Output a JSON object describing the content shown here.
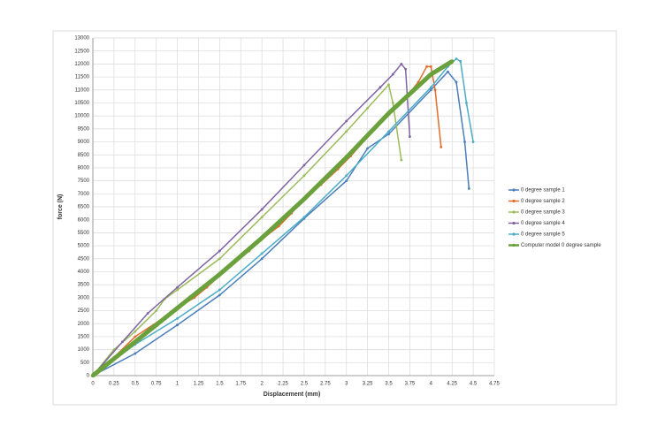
{
  "chart_data": {
    "type": "line",
    "x_label": "Displacement (mm)",
    "y_label": "force (N)",
    "xlim": [
      0,
      4.75
    ],
    "xticks": [
      0,
      0.25,
      0.5,
      0.75,
      1,
      1.25,
      1.5,
      1.75,
      2,
      2.25,
      2.5,
      2.75,
      3,
      3.25,
      3.5,
      3.75,
      4,
      4.25,
      4.5,
      4.75
    ],
    "ylim": [
      0,
      13000
    ],
    "yticks": [
      0,
      500,
      1000,
      1500,
      2000,
      2500,
      3000,
      3500,
      4000,
      4500,
      5000,
      5500,
      6000,
      6500,
      7000,
      7500,
      8000,
      8500,
      9000,
      9500,
      10000,
      10500,
      11000,
      11500,
      12000,
      12500,
      13000
    ],
    "grid": true,
    "legend": "right",
    "series": [
      {
        "name": "0 degree sample 1",
        "color": "#4a7ebb",
        "width": 1.5,
        "x": [
          0,
          0.5,
          1,
          1.5,
          2,
          2.5,
          3,
          3.25,
          3.5,
          4,
          4.2,
          4.3,
          4.4,
          4.45
        ],
        "values": [
          0,
          850,
          1950,
          3100,
          4500,
          6050,
          7500,
          8750,
          9300,
          11000,
          11700,
          11300,
          9000,
          7200
        ]
      },
      {
        "name": "0 degree sample 2",
        "color": "#e46c2a",
        "width": 1.5,
        "x": [
          0,
          0.25,
          0.5,
          0.85,
          1,
          1.2,
          1.35,
          1.5,
          1.65,
          1.85,
          2,
          2.2,
          2.35,
          2.5,
          2.7,
          2.9,
          3.05,
          3.5,
          3.7,
          3.85,
          3.95,
          4.0,
          4.05,
          4.12
        ],
        "values": [
          0,
          700,
          1500,
          2250,
          2600,
          3000,
          3400,
          3850,
          4300,
          4800,
          5250,
          5750,
          6250,
          6800,
          7350,
          7950,
          8450,
          10100,
          10700,
          11300,
          11900,
          11900,
          11000,
          8800
        ]
      },
      {
        "name": "0 degree sample 3",
        "color": "#9bbb59",
        "width": 1.5,
        "x": [
          0,
          0.25,
          0.5,
          0.75,
          0.85,
          1,
          1.5,
          2,
          2.5,
          3,
          3.25,
          3.5,
          3.55,
          3.65
        ],
        "values": [
          0,
          1000,
          1700,
          2500,
          2950,
          3300,
          4500,
          6100,
          7700,
          9400,
          10300,
          11200,
          10500,
          8300
        ]
      },
      {
        "name": "0 degree sample 4",
        "color": "#8064a2",
        "width": 1.5,
        "x": [
          0,
          0.35,
          0.65,
          1,
          1.5,
          2,
          2.5,
          3,
          3.4,
          3.55,
          3.65,
          3.7,
          3.75
        ],
        "values": [
          0,
          1300,
          2400,
          3400,
          4800,
          6400,
          8100,
          9800,
          11100,
          11600,
          12000,
          11800,
          9200
        ]
      },
      {
        "name": "0 degree sample 5",
        "color": "#4bacc6",
        "width": 1.5,
        "x": [
          0,
          0.5,
          1,
          1.5,
          2,
          2.5,
          3,
          3.5,
          4,
          4.2,
          4.3,
          4.35,
          4.42,
          4.5
        ],
        "values": [
          0,
          1200,
          2200,
          3300,
          4700,
          6100,
          7700,
          9400,
          11100,
          11900,
          12200,
          12100,
          10500,
          9000
        ]
      },
      {
        "name": "Computer model 0 degree sample",
        "color": "#6aa13c",
        "width": 5,
        "x": [
          0,
          0.5,
          1,
          1.5,
          2,
          2.5,
          3,
          3.5,
          4,
          4.25
        ],
        "values": [
          0,
          1300,
          2600,
          3900,
          5300,
          6800,
          8400,
          10100,
          11600,
          12100
        ]
      }
    ]
  }
}
